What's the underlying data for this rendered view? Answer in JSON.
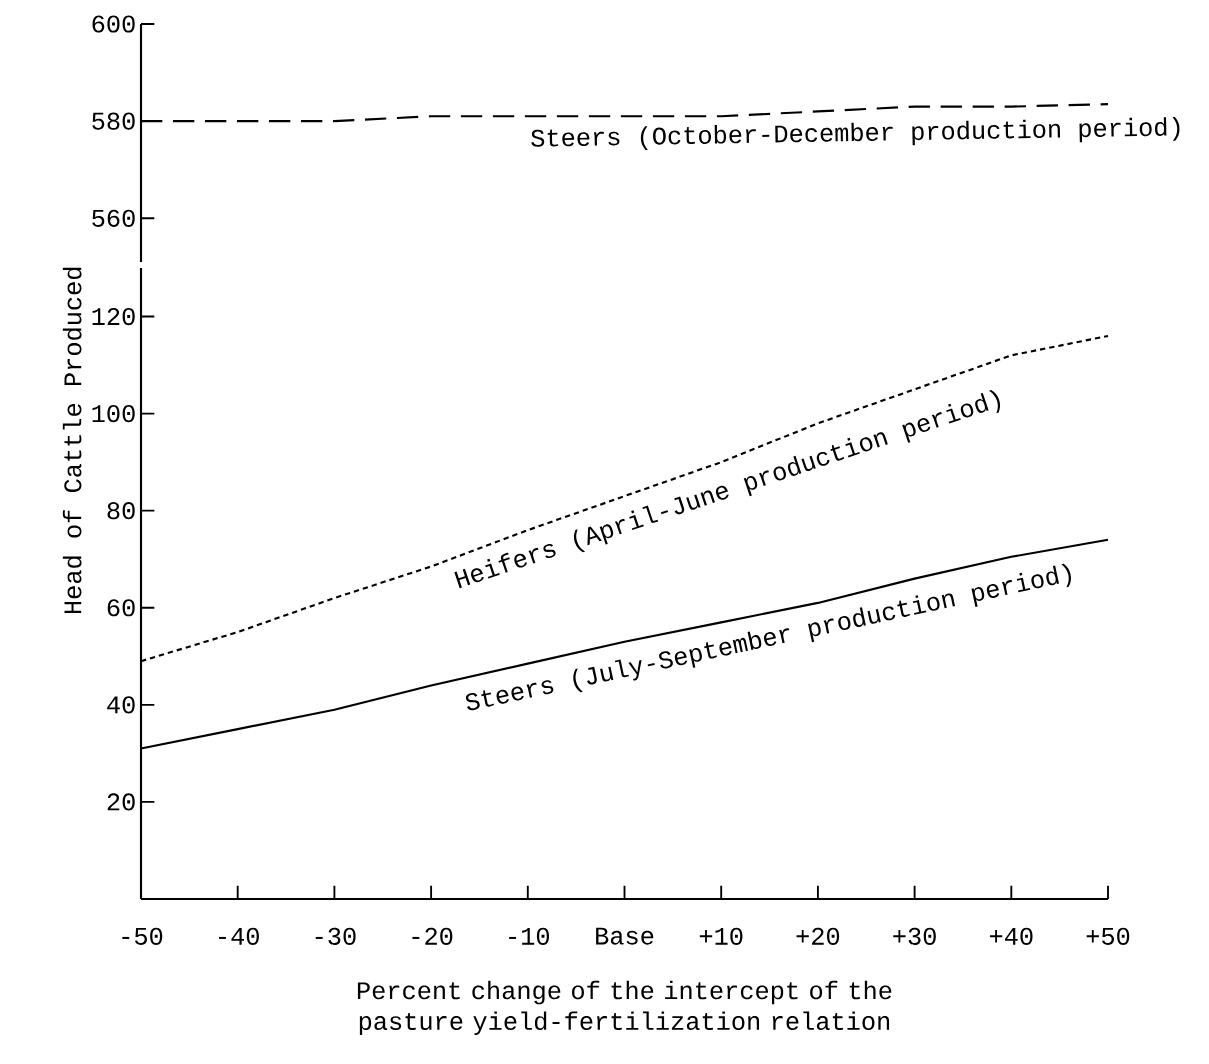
{
  "chart_data": [
    {
      "type": "line",
      "x": [
        -50,
        -40,
        -30,
        -20,
        -10,
        0,
        10,
        20,
        30,
        40,
        50
      ],
      "xlim": [
        -50,
        50
      ],
      "ylim": [
        551,
        600
      ],
      "yticks": [
        560,
        580,
        600
      ],
      "tick_labels": "y",
      "series": [
        {
          "name": "Steers (October-December production period)",
          "color": "#000000",
          "line_style": "dashed",
          "values": [
            580,
            580,
            580,
            581,
            581,
            581,
            581,
            582,
            583,
            583,
            583.5
          ]
        }
      ]
    },
    {
      "type": "line",
      "x": [
        -50,
        -40,
        -30,
        -20,
        -10,
        0,
        10,
        20,
        30,
        40,
        50
      ],
      "xlim": [
        -50,
        50
      ],
      "ylim": [
        0,
        130
      ],
      "yticks": [
        20,
        40,
        60,
        80,
        100,
        120
      ],
      "xticks": [
        -50,
        -40,
        -30,
        -20,
        -10,
        {
          "value": 0,
          "label": "Base"
        },
        {
          "value": 10,
          "label": "+10"
        },
        {
          "value": 20,
          "label": "+20"
        },
        {
          "value": 30,
          "label": "+30"
        },
        {
          "value": 40,
          "label": "+40"
        },
        {
          "value": 50,
          "label": "+50"
        }
      ],
      "xlabel": "Percent change of the intercept of the pasture yield-fertilization relation",
      "ylabel": "Head of Cattle Produced",
      "series": [
        {
          "name": "Heifers (April-June production period)",
          "color": "#000000",
          "line_style": "dotted",
          "values": [
            49,
            55,
            62,
            68.5,
            76,
            83,
            90,
            98,
            105,
            112,
            116
          ]
        },
        {
          "name": "Steers (July-September production period)",
          "color": "#000000",
          "line_style": "solid",
          "values": [
            31,
            35,
            39,
            44,
            48.5,
            53,
            57,
            61,
            66,
            70.5,
            74
          ]
        }
      ]
    }
  ]
}
